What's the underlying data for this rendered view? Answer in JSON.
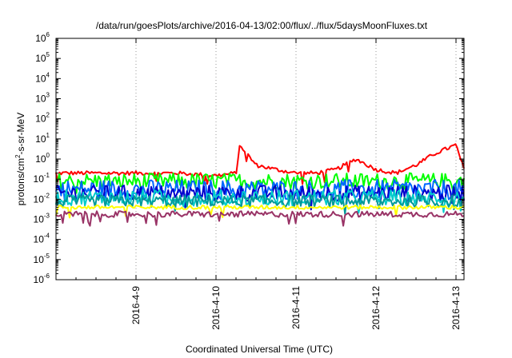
{
  "chart_data": {
    "type": "line",
    "title": "/data/run/goesPlots/archive/2016-04-13/02:00/flux/../flux/5daysMoonFluxes.txt",
    "xlabel": "Coordinated Universal Time (UTC)",
    "ylabel_parts": {
      "before": "protons/cm",
      "sup": "2",
      "after": "-s-sr-MeV"
    },
    "y_scale": "log",
    "ylim": [
      1e-06,
      1000000.0
    ],
    "xlim": [
      "2016-04-08 02:00",
      "2016-04-13 02:00"
    ],
    "y_ticks": [
      {
        "base": "10",
        "exp": "-6"
      },
      {
        "base": "10",
        "exp": "-5"
      },
      {
        "base": "10",
        "exp": "-4"
      },
      {
        "base": "10",
        "exp": "-3"
      },
      {
        "base": "10",
        "exp": "-2"
      },
      {
        "base": "10",
        "exp": "-1"
      },
      {
        "base": "10",
        "exp": "0"
      },
      {
        "base": "10",
        "exp": "1"
      },
      {
        "base": "10",
        "exp": "2"
      },
      {
        "base": "10",
        "exp": "3"
      },
      {
        "base": "10",
        "exp": "4"
      },
      {
        "base": "10",
        "exp": "5"
      },
      {
        "base": "10",
        "exp": "6"
      }
    ],
    "x_ticks": [
      "2016-4-9",
      "2016-4-10",
      "2016-4-11",
      "2016-4-12",
      "2016-4-13"
    ],
    "x_tick_days": [
      1,
      2,
      3,
      4,
      5
    ],
    "grid": true,
    "series": [
      {
        "color": "#ff0000",
        "base": 0.2,
        "noise": 0.1,
        "spikes": [
          [
            2.3,
            5
          ],
          [
            2.35,
            0.7
          ],
          [
            2.5,
            0.5
          ],
          [
            3.7,
            1.2
          ],
          [
            3.75,
            0.8
          ],
          [
            4.65,
            5
          ],
          [
            4.8,
            2
          ],
          [
            5.0,
            5
          ],
          [
            5.05,
            0.3
          ]
        ],
        "x_day": [
          0,
          0.5,
          1,
          1.5,
          2,
          2.25,
          2.3,
          2.5,
          2.75,
          3,
          3.25,
          3.5,
          3.75,
          4,
          4.25,
          4.5,
          4.75,
          5,
          5.1
        ],
        "y": [
          0.2,
          0.2,
          0.2,
          0.2,
          0.15,
          0.2,
          5,
          0.5,
          0.3,
          0.2,
          0.2,
          0.3,
          1,
          0.3,
          0.2,
          0.5,
          2,
          5,
          0.3
        ]
      },
      {
        "color": "#00ff00",
        "base": 0.08,
        "noise": 0.4,
        "spikes": []
      },
      {
        "color": "#0066ff",
        "base": 0.03,
        "noise": 0.5,
        "spikes": []
      },
      {
        "color": "#0000cc",
        "base": 0.02,
        "noise": 0.4,
        "spikes": []
      },
      {
        "color": "#00cccc",
        "base": 0.012,
        "noise": 0.4,
        "spikes": []
      },
      {
        "color": "#009999",
        "base": 0.008,
        "noise": 0.3,
        "spikes": []
      },
      {
        "color": "#ffff00",
        "base": 0.004,
        "noise": 0.1,
        "spikes": []
      },
      {
        "color": "#993366",
        "base": 0.0018,
        "noise": 0.15,
        "spikes": []
      }
    ]
  }
}
